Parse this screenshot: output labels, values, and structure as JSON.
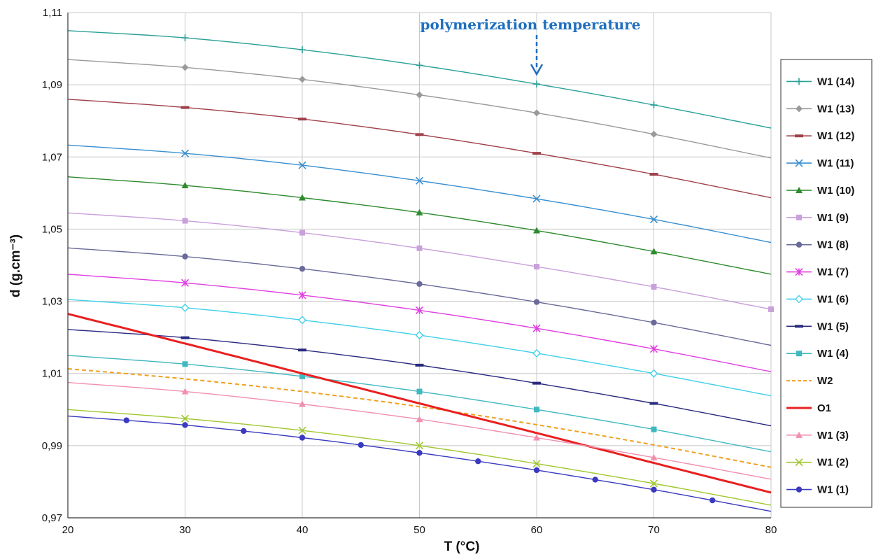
{
  "chart_data": {
    "type": "line",
    "xlabel": "T (°C)",
    "ylabel": "d (g.cm⁻³)",
    "xlim": [
      20,
      80
    ],
    "ylim": [
      0.97,
      1.11
    ],
    "x_ticks": [
      20,
      30,
      40,
      50,
      60,
      70,
      80
    ],
    "x_tick_labels": [
      "20",
      "30",
      "40",
      "50",
      "60",
      "70",
      "80"
    ],
    "y_ticks": [
      0.97,
      0.99,
      1.01,
      1.03,
      1.05,
      1.07,
      1.09,
      1.11
    ],
    "y_tick_labels": [
      "0,97",
      "0,99",
      "1,01",
      "1,03",
      "1,05",
      "1,07",
      "1,09",
      "1,11"
    ],
    "grid": true,
    "legend_position": "right",
    "annotation": {
      "text": "polymerization temperature",
      "x": 60,
      "arrow": "dashed-down"
    },
    "x": [
      20,
      30,
      40,
      50,
      60,
      70,
      80
    ],
    "series": [
      {
        "name": "W1 (14)",
        "color": "#2aa198",
        "marker": "plus",
        "values": [
          1.105,
          1.103,
          1.0997,
          1.0954,
          1.0902,
          1.0844,
          1.078
        ]
      },
      {
        "name": "W1 (13)",
        "color": "#9a9a9a",
        "marker": "diamond",
        "values": [
          1.097,
          1.0948,
          1.0915,
          1.0872,
          1.0822,
          1.0763,
          1.0697
        ]
      },
      {
        "name": "W1 (12)",
        "color": "#a0404a",
        "marker": "dash",
        "values": [
          1.086,
          1.0837,
          1.0805,
          1.0762,
          1.071,
          1.0652,
          1.0587
        ]
      },
      {
        "name": "W1 (11)",
        "color": "#3a8fd0",
        "marker": "x",
        "values": [
          1.0733,
          1.071,
          1.0677,
          1.0634,
          1.0584,
          1.0527,
          1.0463
        ]
      },
      {
        "name": "W1 (10)",
        "color": "#2e8b2e",
        "marker": "triangle",
        "values": [
          1.0645,
          1.0621,
          1.0587,
          1.0546,
          1.0496,
          1.0438,
          1.0375
        ]
      },
      {
        "name": "W1 (9)",
        "color": "#c9a0dc",
        "marker": "square",
        "values": [
          1.0545,
          1.0523,
          1.049,
          1.0447,
          1.0396,
          1.034,
          1.0278
        ]
      },
      {
        "name": "W1 (8)",
        "color": "#6a6a9a",
        "marker": "circle",
        "values": [
          1.0448,
          1.0424,
          1.039,
          1.0348,
          1.0298,
          1.0241,
          1.0178
        ]
      },
      {
        "name": "W1 (7)",
        "color": "#e040e0",
        "marker": "star",
        "values": [
          1.0375,
          1.0351,
          1.0317,
          1.0275,
          1.0225,
          1.0168,
          1.0105
        ]
      },
      {
        "name": "W1 (6)",
        "color": "#40d0e8",
        "marker": "diamond-open",
        "values": [
          1.0305,
          1.0282,
          1.0248,
          1.0206,
          1.0156,
          1.01,
          1.0038
        ]
      },
      {
        "name": "W1 (5)",
        "color": "#2a2a80",
        "marker": "dash",
        "values": [
          1.0222,
          1.0199,
          1.0165,
          1.0123,
          1.0073,
          1.0017,
          0.9955
        ]
      },
      {
        "name": "W1 (4)",
        "color": "#40b8c0",
        "marker": "square",
        "values": [
          1.015,
          1.0126,
          1.0092,
          1.005,
          1.0,
          0.9945,
          0.9883
        ]
      },
      {
        "name": "W2",
        "color": "#f0a020",
        "marker": "none",
        "dashed": true,
        "values": [
          1.0113,
          1.0085,
          1.005,
          1.0008,
          0.9958,
          0.9902,
          0.984
        ]
      },
      {
        "name": "O1",
        "color": "#e82020",
        "marker": "none",
        "bold": true,
        "values": [
          1.0265,
          1.0183,
          1.01,
          1.0017,
          0.9935,
          0.9852,
          0.977
        ]
      },
      {
        "name": "W1 (3)",
        "color": "#f090b0",
        "marker": "triangle",
        "values": [
          1.0075,
          1.005,
          1.0015,
          0.9973,
          0.9922,
          0.9867,
          0.9807
        ]
      },
      {
        "name": "W1 (2)",
        "color": "#a0c830",
        "marker": "x",
        "values": [
          1.0,
          0.9975,
          0.9942,
          0.99,
          0.985,
          0.9795,
          0.9735
        ]
      },
      {
        "name": "W1 (1)",
        "color": "#3a3ac0",
        "marker": "circle",
        "marker_x": [
          25,
          30,
          35,
          40,
          45,
          50,
          55,
          60,
          65,
          70,
          75
        ],
        "values": [
          0.9982,
          0.9957,
          0.9922,
          0.988,
          0.9832,
          0.9778,
          0.9718
        ]
      }
    ]
  }
}
